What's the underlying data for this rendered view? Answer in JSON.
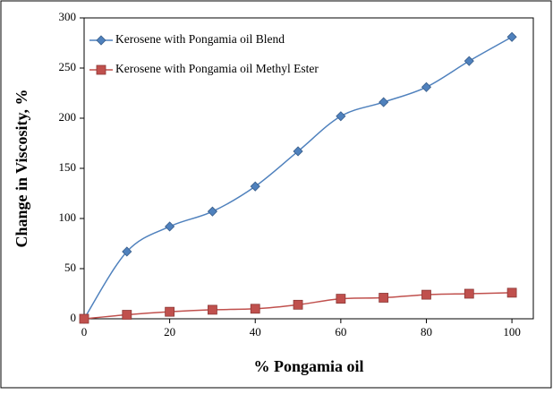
{
  "chart_data": {
    "type": "line",
    "smooth": true,
    "x": [
      0,
      10,
      20,
      30,
      40,
      50,
      60,
      70,
      80,
      90,
      100
    ],
    "series": [
      {
        "name": "Kerosene with Pongamia oil Blend",
        "color": "#4f81bd",
        "marker": "diamond",
        "values": [
          0,
          67,
          92,
          107,
          132,
          167,
          202,
          216,
          231,
          257,
          281
        ]
      },
      {
        "name": "Kerosene with Pongamia oil Methyl Ester",
        "color": "#c0504d",
        "marker": "square",
        "values": [
          0,
          4,
          7,
          9,
          10,
          14,
          20,
          21,
          24,
          25,
          26
        ]
      }
    ],
    "xlabel": "% Pongamia oil",
    "ylabel": "Change in Viscosity, %",
    "xlim": [
      0,
      105
    ],
    "xticks": [
      0,
      20,
      40,
      60,
      80,
      100
    ],
    "ylim": [
      0,
      300
    ],
    "yticks": [
      0,
      50,
      100,
      150,
      200,
      250,
      300
    ],
    "grid": false,
    "legend": "upper left"
  }
}
